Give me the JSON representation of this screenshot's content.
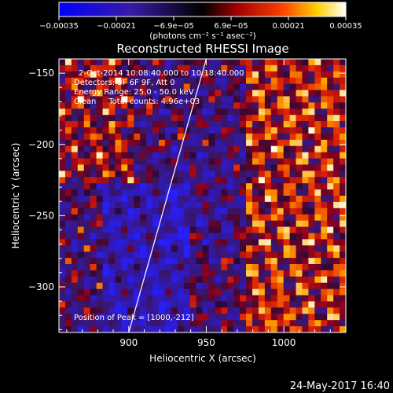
{
  "colorbar": {
    "ticks": [
      "-0.00035",
      "-0.00021",
      "-6.9e-05",
      "6.9e-05",
      "0.00021",
      "0.00035"
    ],
    "unit_label": "(photons cm⁻² s⁻¹ asec⁻²)"
  },
  "chart_data": {
    "type": "heatmap",
    "title": "Reconstructed RHESSI Image",
    "xlabel": "Heliocentric X (arcsec)",
    "ylabel": "Heliocentric Y (arcsec)",
    "xlim": [
      855,
      1040
    ],
    "ylim": [
      -332,
      -140
    ],
    "xticks": [
      900,
      950,
      1000
    ],
    "yticks": [
      -150,
      -200,
      -250,
      -300
    ],
    "color_range": [
      -0.00035,
      0.00035
    ],
    "colormap": "blue-black-red-yellow-white",
    "annotations": [
      "2-Oct-2014 10:08:40.000 to 10:18:40.000",
      "Detectors: 3F 6F 9F, Att 0",
      "Energy Range: 25.0 - 50.0 keV",
      "Clean     Total counts: 4.96e+03"
    ],
    "peak_label": "Position of Peak = [1000,-212]",
    "limb": {
      "x": [
        900,
        950
      ],
      "y": [
        -332,
        -140
      ]
    }
  },
  "timestamp": "24-May-2017 16:40"
}
